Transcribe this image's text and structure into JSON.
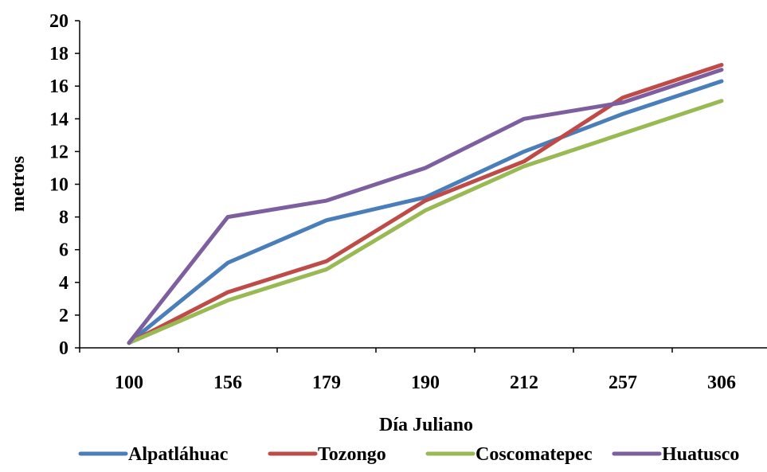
{
  "chart_data": {
    "type": "line",
    "title": "",
    "xlabel": "Día Juliano",
    "ylabel": "metros",
    "categories": [
      "100",
      "156",
      "179",
      "190",
      "212",
      "257",
      "306"
    ],
    "ylim": [
      0,
      20
    ],
    "yticks": [
      "0",
      "2",
      "4",
      "6",
      "8",
      "10",
      "12",
      "14",
      "16",
      "18",
      "20"
    ],
    "grid": false,
    "legend_position": "bottom",
    "series": [
      {
        "name": "Alpatláhuac",
        "color": "#4a7ebb",
        "values": [
          0.3,
          5.2,
          7.8,
          9.2,
          12.0,
          14.3,
          16.3
        ]
      },
      {
        "name": "Tozongo",
        "color": "#be4b48",
        "values": [
          0.3,
          3.4,
          5.3,
          9.0,
          11.4,
          15.3,
          17.3
        ]
      },
      {
        "name": "Coscomatepec",
        "color": "#98b954",
        "values": [
          0.3,
          2.9,
          4.8,
          8.4,
          11.1,
          13.1,
          15.1
        ]
      },
      {
        "name": "Huatusco",
        "color": "#7d5fa0",
        "values": [
          0.3,
          8.0,
          9.0,
          11.0,
          14.0,
          15.0,
          17.0
        ]
      }
    ]
  }
}
